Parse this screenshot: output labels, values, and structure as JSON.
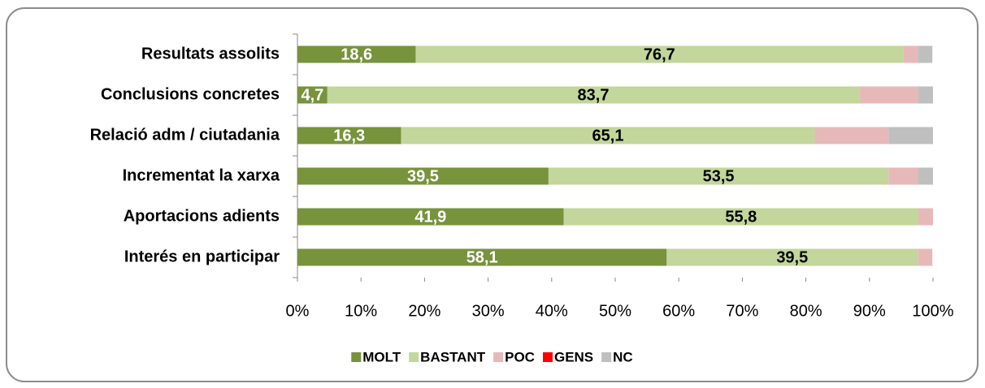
{
  "chart_data": {
    "type": "stacked-barh",
    "categories": [
      "Resultats assolits",
      "Conclusions concretes",
      "Relació adm / ciutadania",
      "Incrementat la xarxa",
      "Aportacions adients",
      "Interés en participar"
    ],
    "series": [
      {
        "name": "MOLT",
        "color": "#77933c",
        "values": [
          18.6,
          4.7,
          16.3,
          39.5,
          41.9,
          58.1
        ],
        "value_labels": [
          "18,6",
          "4,7",
          "16,3",
          "39,5",
          "41,9",
          "58,1"
        ]
      },
      {
        "name": "BASTANT",
        "color": "#c3d69b",
        "values": [
          76.7,
          83.7,
          65.1,
          53.5,
          55.8,
          39.5
        ],
        "value_labels": [
          "76,7",
          "83,7",
          "65,1",
          "53,5",
          "55,8",
          "39,5"
        ]
      },
      {
        "name": "POC",
        "color": "#e6b9b8",
        "values": [
          2.3,
          9.3,
          11.6,
          4.7,
          2.3,
          2.3
        ]
      },
      {
        "name": "GENS",
        "color": "#ff0000",
        "values": [
          0,
          0,
          0,
          0,
          0,
          0
        ]
      },
      {
        "name": "NC",
        "color": "#bfbfbf",
        "values": [
          2.3,
          2.3,
          7.0,
          2.3,
          0,
          0
        ]
      }
    ],
    "xlim": [
      0,
      100
    ],
    "xticks": [
      {
        "value": 0,
        "label": "0%"
      },
      {
        "value": 10,
        "label": "10%"
      },
      {
        "value": 20,
        "label": "20%"
      },
      {
        "value": 30,
        "label": "30%"
      },
      {
        "value": 40,
        "label": "40%"
      },
      {
        "value": 50,
        "label": "50%"
      },
      {
        "value": 60,
        "label": "60%"
      },
      {
        "value": 70,
        "label": "70%"
      },
      {
        "value": 80,
        "label": "80%"
      },
      {
        "value": 90,
        "label": "90%"
      },
      {
        "value": 100,
        "label": "100%"
      }
    ],
    "legend": "bottom"
  }
}
